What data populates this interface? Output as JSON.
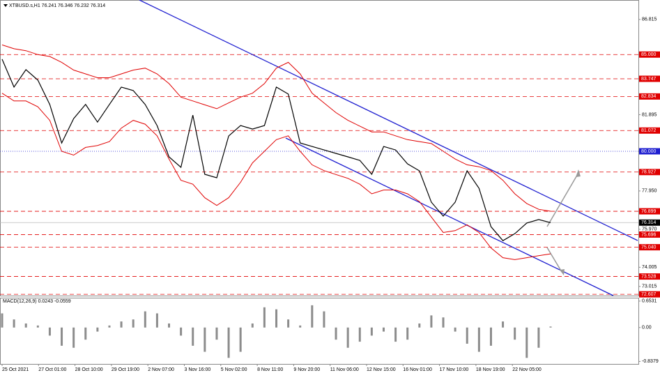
{
  "chart_data": {
    "type": "candle-line",
    "title": "XTBUSD.s,H1  76.241 76.346 76.232 76.314",
    "ylim": [
      72.54,
      87.82
    ],
    "yticks": [
      86.815,
      81.895,
      {
        "value": 77.95,
        "label": "77.950"
      },
      {
        "value": 75.97,
        "label": "75.970"
      },
      {
        "value": 74.005,
        "label": "74.005"
      },
      {
        "value": 73.015,
        "label": "73.015"
      }
    ],
    "levels": [
      {
        "value": 85,
        "label": "85.000",
        "color": "#e00000"
      },
      {
        "value": 83.747,
        "label": "83.747",
        "color": "#e00000"
      },
      {
        "value": 82.834,
        "label": "82.834",
        "color": "#e00000"
      },
      {
        "value": 81.072,
        "label": "81.072",
        "color": "#e00000"
      },
      {
        "value": 80,
        "label": "80.000",
        "color": "#1f1fd0"
      },
      {
        "value": 78.927,
        "label": "78.927",
        "color": "#e00000"
      },
      {
        "value": 76.899,
        "label": "76.899",
        "color": "#e00000"
      },
      {
        "value": 76.314,
        "label": "76.314",
        "color": "#000000"
      },
      {
        "value": 75.696,
        "label": "75.696",
        "color": "#e00000"
      },
      {
        "value": 75.04,
        "label": "75.040",
        "color": "#e00000"
      },
      {
        "value": 73.528,
        "label": "73.528",
        "color": "#e00000"
      },
      {
        "value": 72.607,
        "label": "72.607",
        "color": "#e00000"
      }
    ],
    "x_labels": [
      "25 Oct 2021",
      "27 Oct 01:00",
      "28 Oct 10:00",
      "29 Oct 19:00",
      "2 Nov 07:00",
      "3 Nov 16:00",
      "5 Nov 02:00",
      "8 Nov 11:00",
      "9 Nov 20:00",
      "11 Nov 06:00",
      "12 Nov 15:00",
      "16 Nov 01:00",
      "17 Nov 10:00",
      "18 Nov 19:00",
      "22 Nov 05:00"
    ],
    "series": [
      {
        "color": "#000000",
        "values": [
          84.76,
          83.32,
          84.22,
          83.68,
          82.42,
          80.43,
          81.69,
          82.42,
          81.51,
          82.42,
          83.32,
          83.14,
          82.42,
          81.33,
          79.71,
          79.17,
          81.87,
          78.81,
          78.63,
          80.79,
          81.33,
          81.15,
          81.33,
          83.32,
          82.96,
          80.43,
          80.25,
          80.07,
          79.89,
          79.71,
          79.53,
          78.81,
          80.25,
          80.07,
          79.35,
          78.99,
          77.37,
          76.65,
          77.37,
          78.99,
          78.09,
          76.1,
          75.38,
          75.74,
          76.29,
          76.47,
          76.314
        ]
      },
      {
        "color": "#e00000",
        "values": [
          85.5,
          85.3,
          85.2,
          85.0,
          84.9,
          84.6,
          84.2,
          84.0,
          83.8,
          83.8,
          84.0,
          84.2,
          84.3,
          84.0,
          83.5,
          82.8,
          82.6,
          82.4,
          82.2,
          82.5,
          82.8,
          83.0,
          83.5,
          84.3,
          84.6,
          84.0,
          83.0,
          82.5,
          82.0,
          81.6,
          81.3,
          81.0,
          81.0,
          80.8,
          80.6,
          80.5,
          80.4,
          80.0,
          79.6,
          79.3,
          79.2,
          79.0,
          78.5,
          77.8,
          77.3,
          77.0,
          76.9
        ]
      },
      {
        "color": "#e00000",
        "values": [
          83.0,
          82.6,
          82.6,
          82.3,
          81.6,
          80.0,
          79.8,
          80.2,
          80.3,
          80.5,
          81.2,
          81.6,
          81.4,
          80.8,
          79.6,
          78.5,
          78.3,
          77.6,
          77.2,
          77.6,
          78.4,
          79.4,
          80.0,
          80.6,
          80.8,
          80.0,
          79.3,
          79.0,
          78.8,
          78.6,
          78.3,
          77.8,
          78.0,
          78.0,
          77.8,
          77.4,
          76.6,
          75.8,
          75.9,
          76.2,
          75.8,
          75.0,
          74.5,
          74.4,
          74.5,
          74.6,
          74.7
        ]
      }
    ],
    "macd": {
      "title": "MACD(12,26,9) 0.0243 -0.0559",
      "ylim": [
        -0.9,
        0.72
      ],
      "yticks": [
        0.6531,
        {
          "value": 0,
          "label": "0.00"
        },
        -0.8379
      ],
      "color": "#8c8c8c",
      "values": [
        0.35,
        0.2,
        0.1,
        0.05,
        -0.2,
        -0.45,
        -0.5,
        -0.3,
        -0.1,
        0.05,
        0.15,
        0.2,
        0.4,
        0.35,
        0.1,
        -0.2,
        -0.45,
        -0.6,
        -0.3,
        -0.75,
        -0.6,
        0.1,
        0.5,
        0.45,
        0.2,
        0.05,
        0.55,
        0.4,
        -0.3,
        -0.5,
        -0.35,
        -0.2,
        -0.1,
        -0.35,
        -0.3,
        0.1,
        0.3,
        0.25,
        -0.1,
        -0.4,
        -0.6,
        -0.45,
        0.15,
        -0.3,
        -0.75,
        -0.5,
        0.0243
      ]
    }
  }
}
